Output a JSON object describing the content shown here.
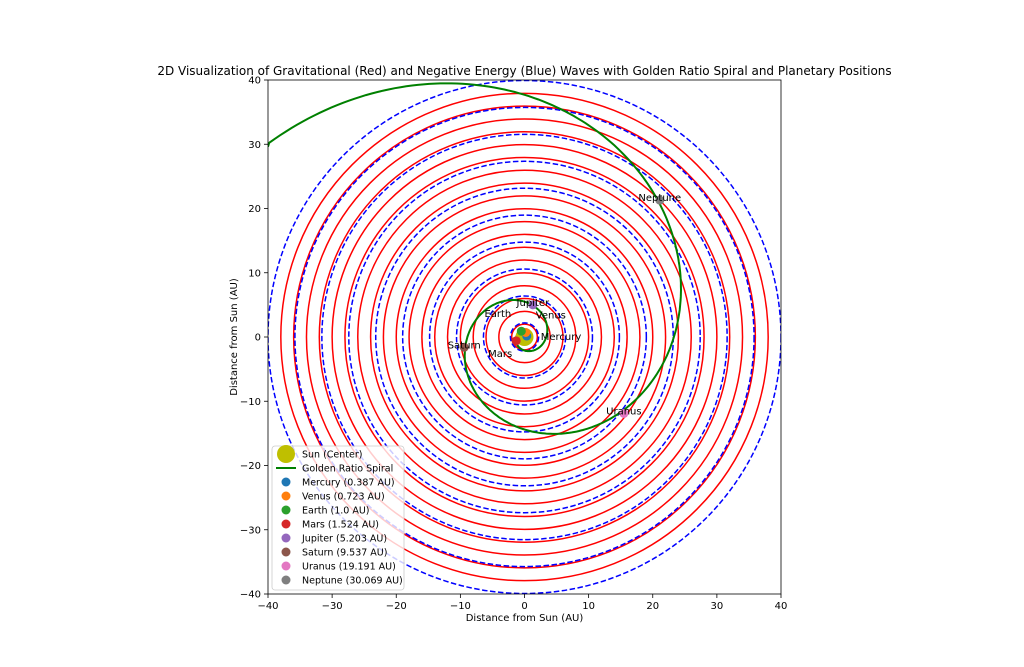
{
  "chart_data": {
    "type": "line",
    "title": "2D Visualization of Gravitational (Red) and Negative Energy (Blue) Waves with Golden Ratio Spiral and Planetary Positions",
    "xlabel": "Distance from Sun (AU)",
    "ylabel": "Distance from Sun (AU)",
    "xlim": [
      -40,
      40
    ],
    "ylim": [
      -40,
      40
    ],
    "xticks": [
      -40,
      -30,
      -20,
      -10,
      0,
      10,
      20,
      30,
      40
    ],
    "yticks": [
      -40,
      -30,
      -20,
      -10,
      0,
      10,
      20,
      30,
      40
    ],
    "grid": false,
    "legend_placement": "lower-left",
    "gravitational_wave_radii": [
      2,
      4,
      6,
      8,
      10,
      12,
      14,
      16,
      18,
      20,
      22,
      24,
      26,
      28,
      30,
      32,
      34,
      36,
      38
    ],
    "negative_energy_wave_radii": [
      2.2,
      6.4,
      10.6,
      14.8,
      19.0,
      23.2,
      27.4,
      31.6,
      35.8,
      40
    ],
    "colors": {
      "gravitational": "#ff0000",
      "negative_energy": "#0000ff",
      "spiral": "#008000",
      "sun": "#bfbf00"
    },
    "spiral": {
      "label": "Golden Ratio Spiral",
      "phi": 1.618,
      "radius_at_top_quarter_turn": 5.5
    },
    "sun": {
      "label": "Sun (Center)",
      "position": [
        0,
        0
      ]
    },
    "planets": [
      {
        "name": "Mercury",
        "legend": "Mercury (0.387 AU)",
        "color": "#1f77b4",
        "position": [
          0.35,
          0.15
        ]
      },
      {
        "name": "Venus",
        "legend": "Venus (0.723 AU)",
        "color": "#ff7f0e",
        "position": [
          0.2,
          0.7
        ]
      },
      {
        "name": "Earth",
        "legend": "Earth (1.0 AU)",
        "color": "#2ca02c",
        "position": [
          -0.5,
          0.9
        ]
      },
      {
        "name": "Mars",
        "legend": "Mars (1.524 AU)",
        "color": "#d62728",
        "position": [
          -1.3,
          -0.6
        ]
      },
      {
        "name": "Jupiter",
        "legend": "Jupiter (5.203 AU)",
        "color": "#9467bd",
        "position": [
          1.3,
          5.0
        ]
      },
      {
        "name": "Saturn",
        "legend": "Saturn (9.537 AU)",
        "color": "#8c564b",
        "position": [
          -9.4,
          -1.6
        ]
      },
      {
        "name": "Uranus",
        "legend": "Uranus (19.191 AU)",
        "color": "#e377c2",
        "position": [
          15.5,
          -11.9
        ]
      },
      {
        "name": "Neptune",
        "legend": "Neptune (30.069 AU)",
        "color": "#7f7f7f",
        "position": [
          21.1,
          21.3
        ]
      }
    ]
  }
}
